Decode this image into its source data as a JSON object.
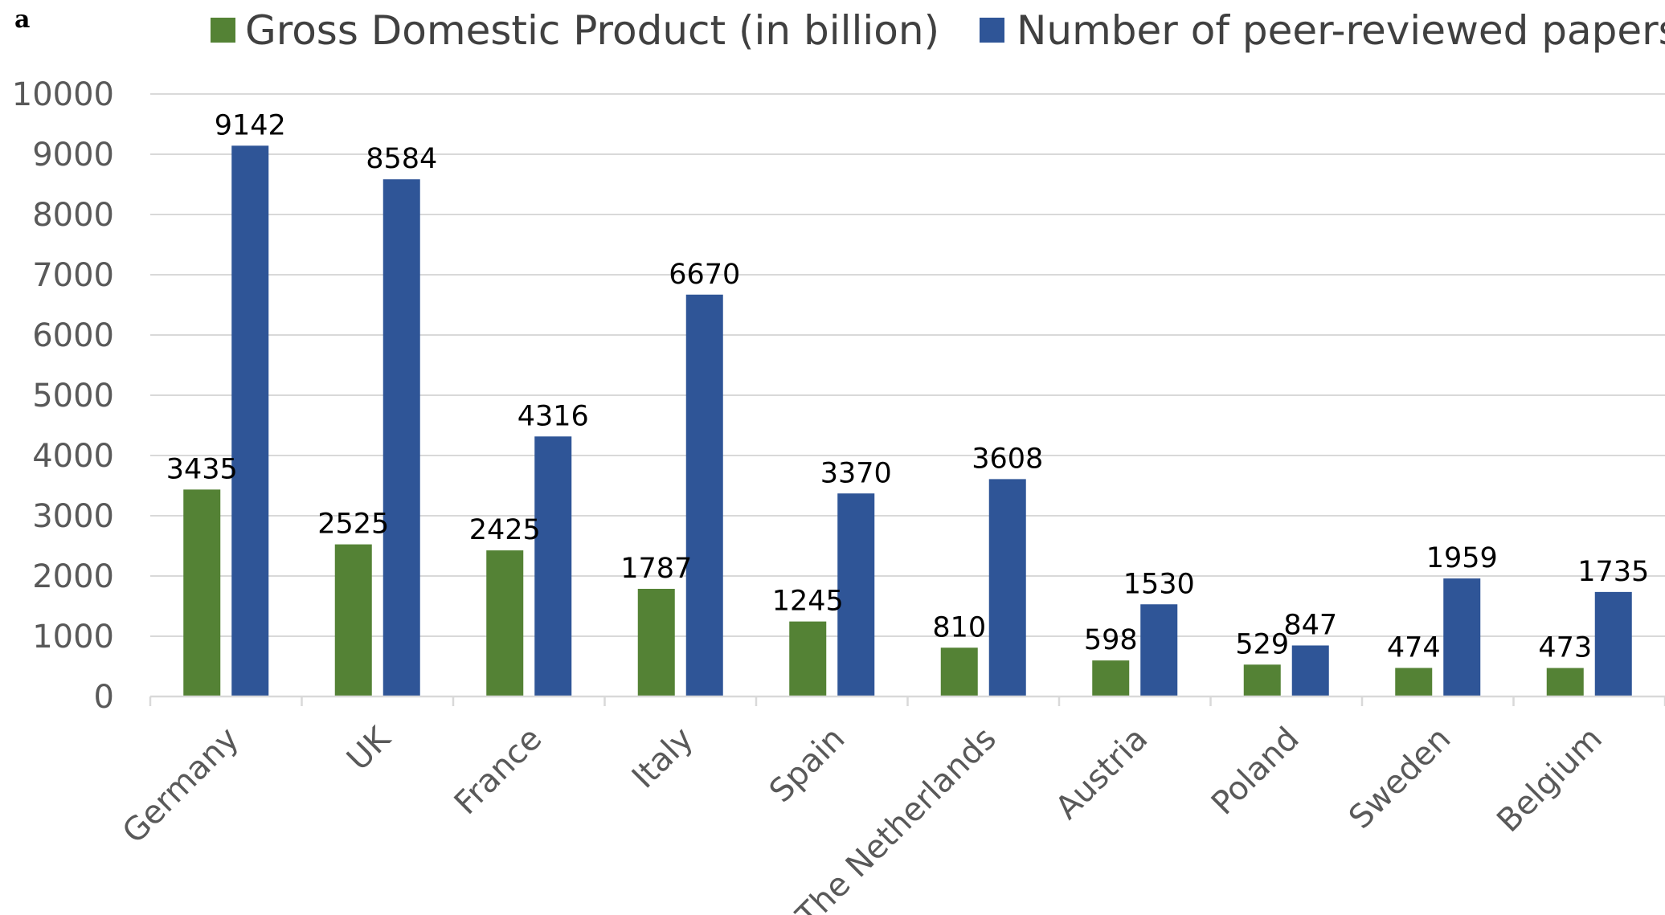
{
  "panel_label": "a",
  "chart_data": {
    "type": "bar",
    "title": "",
    "xlabel": "",
    "ylabel": "",
    "ylim": [
      0,
      10000
    ],
    "yticks": [
      0,
      1000,
      2000,
      3000,
      4000,
      5000,
      6000,
      7000,
      8000,
      9000,
      10000
    ],
    "grid": true,
    "legend_position": "top",
    "categories": [
      "Germany",
      "UK",
      "France",
      "Italy",
      "Spain",
      "The Netherlands",
      "Austria",
      "Poland",
      "Sweden",
      "Belgium"
    ],
    "series": [
      {
        "name": "Gross Domestic Product (in billion)",
        "color": "#548235",
        "values": [
          3435,
          2525,
          2425,
          1787,
          1245,
          810,
          598,
          529,
          474,
          473
        ]
      },
      {
        "name": "Number of peer-reviewed papers",
        "color": "#2F5597",
        "values": [
          9142,
          8584,
          4316,
          6670,
          3370,
          3608,
          1530,
          847,
          1959,
          1735
        ]
      }
    ]
  }
}
